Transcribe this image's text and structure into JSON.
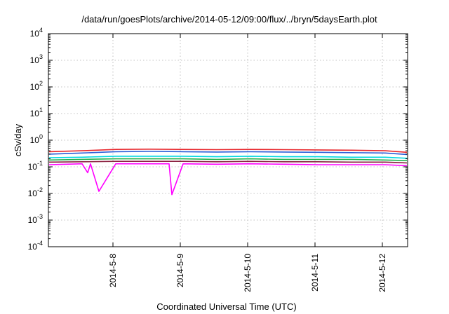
{
  "chart_data": {
    "type": "line",
    "title": "/data/run/goesPlots/archive/2014-05-12/09:00/flux/../bryn/5daysEarth.plot",
    "xlabel": "Coordinated Universal Time (UTC)",
    "ylabel": "cSv/day",
    "yscale": "log",
    "ylim": [
      0.0001,
      10000
    ],
    "yticks": [
      {
        "base": "10",
        "exp": "-4",
        "value": 0.0001
      },
      {
        "base": "10",
        "exp": "-3",
        "value": 0.001
      },
      {
        "base": "10",
        "exp": "-2",
        "value": 0.01
      },
      {
        "base": "10",
        "exp": "-1",
        "value": 0.1
      },
      {
        "base": "10",
        "exp": "0",
        "value": 1
      },
      {
        "base": "10",
        "exp": "1",
        "value": 10
      },
      {
        "base": "10",
        "exp": "2",
        "value": 100
      },
      {
        "base": "10",
        "exp": "3",
        "value": 1000
      },
      {
        "base": "10",
        "exp": "4",
        "value": 10000
      }
    ],
    "xlim": [
      "2014-05-07 01:00",
      "2014-05-12 09:00"
    ],
    "xticks": [
      "2014-5-8",
      "2014-5-9",
      "2014-5-10",
      "2014-5-11",
      "2014-5-12"
    ],
    "grid": true,
    "legend": "none",
    "series": [
      {
        "color": "#e8262b",
        "x": [
          "2014-05-07 01:00",
          "2014-05-07 13:00",
          "2014-05-08 01:00",
          "2014-05-08 13:00",
          "2014-05-09 01:00",
          "2014-05-09 13:00",
          "2014-05-10 01:00",
          "2014-05-10 13:00",
          "2014-05-11 01:00",
          "2014-05-11 13:00",
          "2014-05-12 01:00",
          "2014-05-12 09:00"
        ],
        "values": [
          0.37,
          0.4,
          0.45,
          0.46,
          0.45,
          0.44,
          0.45,
          0.44,
          0.43,
          0.42,
          0.4,
          0.35
        ]
      },
      {
        "color": "#2a5fd8",
        "x": [
          "2014-05-07 01:00",
          "2014-05-07 13:00",
          "2014-05-08 01:00",
          "2014-05-08 13:00",
          "2014-05-09 01:00",
          "2014-05-09 13:00",
          "2014-05-10 01:00",
          "2014-05-10 13:00",
          "2014-05-11 01:00",
          "2014-05-11 13:00",
          "2014-05-12 01:00",
          "2014-05-12 09:00"
        ],
        "values": [
          0.3,
          0.33,
          0.37,
          0.38,
          0.37,
          0.36,
          0.37,
          0.36,
          0.35,
          0.34,
          0.33,
          0.29
        ]
      },
      {
        "color": "#00d8e0",
        "x": [
          "2014-05-07 01:00",
          "2014-05-07 13:00",
          "2014-05-08 01:00",
          "2014-05-08 13:00",
          "2014-05-09 01:00",
          "2014-05-09 13:00",
          "2014-05-10 01:00",
          "2014-05-10 13:00",
          "2014-05-11 01:00",
          "2014-05-11 13:00",
          "2014-05-12 01:00",
          "2014-05-12 09:00"
        ],
        "values": [
          0.22,
          0.23,
          0.25,
          0.25,
          0.25,
          0.24,
          0.25,
          0.24,
          0.24,
          0.23,
          0.23,
          0.21
        ]
      },
      {
        "color": "#22b14c",
        "x": [
          "2014-05-07 01:00",
          "2014-05-07 13:00",
          "2014-05-08 01:00",
          "2014-05-08 13:00",
          "2014-05-09 01:00",
          "2014-05-09 13:00",
          "2014-05-10 01:00",
          "2014-05-10 13:00",
          "2014-05-11 01:00",
          "2014-05-11 13:00",
          "2014-05-12 01:00",
          "2014-05-12 09:00"
        ],
        "values": [
          0.18,
          0.19,
          0.2,
          0.2,
          0.2,
          0.19,
          0.2,
          0.19,
          0.19,
          0.19,
          0.18,
          0.17
        ]
      },
      {
        "color": "#8b1f3f",
        "x": [
          "2014-05-07 01:00",
          "2014-05-07 13:00",
          "2014-05-08 01:00",
          "2014-05-08 13:00",
          "2014-05-09 01:00",
          "2014-05-09 13:00",
          "2014-05-10 01:00",
          "2014-05-10 13:00",
          "2014-05-11 01:00",
          "2014-05-11 13:00",
          "2014-05-12 01:00",
          "2014-05-12 09:00"
        ],
        "values": [
          0.15,
          0.155,
          0.16,
          0.16,
          0.16,
          0.155,
          0.16,
          0.155,
          0.155,
          0.15,
          0.15,
          0.14
        ]
      },
      {
        "color": "#ff00ff",
        "x": [
          "2014-05-07 01:00",
          "2014-05-07 13:00",
          "2014-05-07 15:00",
          "2014-05-07 16:00",
          "2014-05-07 19:00",
          "2014-05-08 01:00",
          "2014-05-08 13:00",
          "2014-05-08 20:00",
          "2014-05-08 21:00",
          "2014-05-09 01:00",
          "2014-05-09 13:00",
          "2014-05-10 01:00",
          "2014-05-10 13:00",
          "2014-05-11 01:00",
          "2014-05-11 13:00",
          "2014-05-12 01:00",
          "2014-05-12 09:00"
        ],
        "values": [
          0.12,
          0.13,
          0.06,
          0.13,
          0.012,
          0.13,
          0.13,
          0.13,
          0.009,
          0.13,
          0.125,
          0.13,
          0.125,
          0.12,
          0.12,
          0.12,
          0.11
        ]
      }
    ]
  }
}
